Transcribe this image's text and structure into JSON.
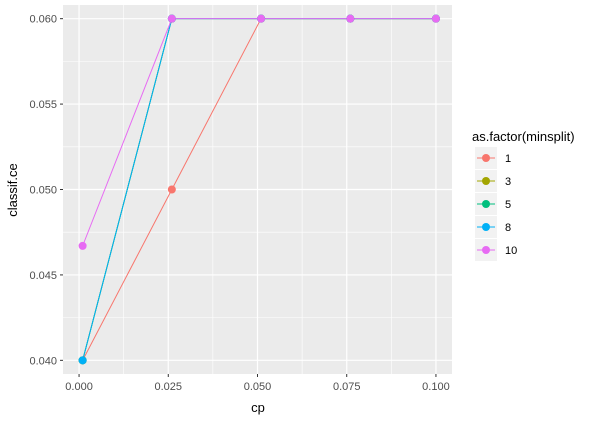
{
  "chart_data": {
    "type": "line",
    "xlabel": "cp",
    "ylabel": "classif.ce",
    "xlim": [
      -0.0045,
      0.1045
    ],
    "ylim": [
      0.0392,
      0.0608
    ],
    "x_ticks": [
      0.0,
      0.025,
      0.05,
      0.075,
      0.1
    ],
    "x_tick_labels": [
      "0.000",
      "0.025",
      "0.050",
      "0.075",
      "0.100"
    ],
    "y_ticks": [
      0.04,
      0.045,
      0.05,
      0.055,
      0.06
    ],
    "y_tick_labels": [
      "0.040",
      "0.045",
      "0.050",
      "0.055",
      "0.060"
    ],
    "grid": true,
    "legend": {
      "title": "as.factor(minsplit)",
      "placement": "right"
    },
    "series": [
      {
        "name": "1",
        "color": "#F8766D",
        "x": [
          0.001,
          0.026,
          0.051,
          0.076,
          0.1
        ],
        "y": [
          0.04,
          0.05,
          0.06,
          0.06,
          0.06
        ]
      },
      {
        "name": "3",
        "color": "#A3A500",
        "x": [
          0.001,
          0.026,
          0.051,
          0.076,
          0.1
        ],
        "y": [
          0.04,
          0.06,
          0.06,
          0.06,
          0.06
        ]
      },
      {
        "name": "5",
        "color": "#00BF7D",
        "x": [
          0.001,
          0.026,
          0.051,
          0.076,
          0.1
        ],
        "y": [
          0.04,
          0.06,
          0.06,
          0.06,
          0.06
        ]
      },
      {
        "name": "8",
        "color": "#00B0F6",
        "x": [
          0.001,
          0.026,
          0.051,
          0.076,
          0.1
        ],
        "y": [
          0.04,
          0.06,
          0.06,
          0.06,
          0.06
        ]
      },
      {
        "name": "10",
        "color": "#E76BF3",
        "x": [
          0.001,
          0.026,
          0.051,
          0.076,
          0.1
        ],
        "y": [
          0.0467,
          0.06,
          0.06,
          0.06,
          0.06
        ]
      }
    ],
    "panel_background": "#EBEBEB",
    "grid_color": "#FFFFFF"
  }
}
